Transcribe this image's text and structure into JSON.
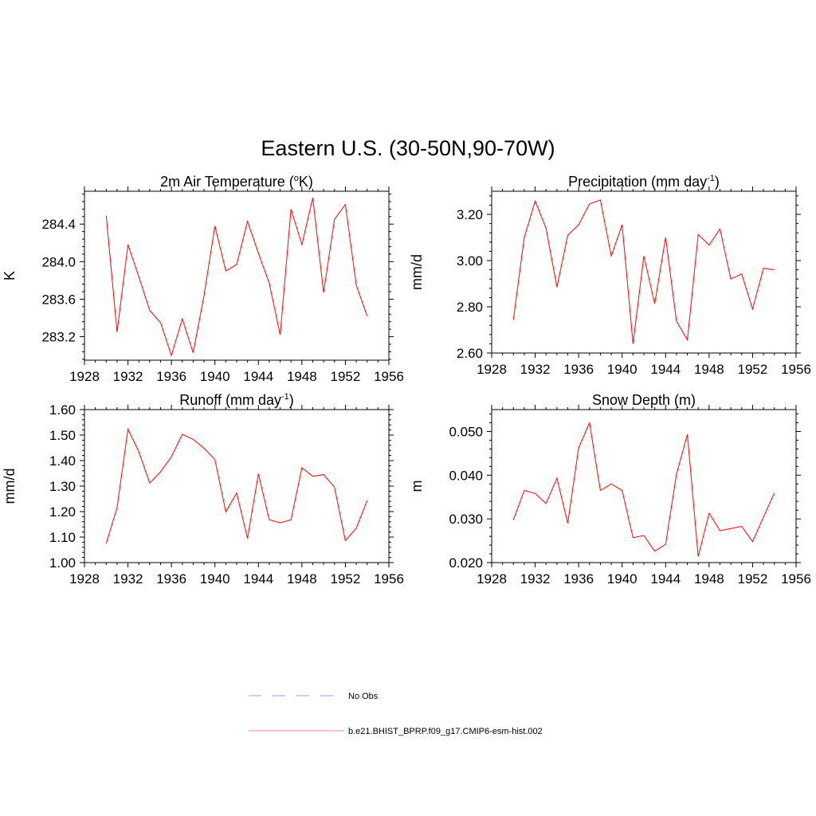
{
  "figure": {
    "title": "Eastern U.S. (30-50N,90-70W)"
  },
  "legend": {
    "items": [
      {
        "label": "No Obs",
        "color": "#9999ff",
        "style": "dashed"
      },
      {
        "label": "b.e21.BHIST_BPRP.f09_g17.CMIP6-esm-hist.002",
        "color": "#ff8080",
        "style": "solid"
      }
    ]
  },
  "chart_data": [
    {
      "type": "line",
      "title_main": "2m Air Temperature (",
      "title_sup": "o",
      "title_tail": "K)",
      "xlabel": "",
      "ylabel": "K",
      "series_color": "#ff0000",
      "xlim": [
        1928,
        1956
      ],
      "ylim": [
        282.95,
        284.75
      ],
      "xticks": [
        1928,
        1932,
        1936,
        1940,
        1944,
        1948,
        1952,
        1956
      ],
      "yticks": [
        283.2,
        283.6,
        284.0,
        284.4
      ],
      "ytick_labels": [
        "283.2",
        "283.6",
        "284.0",
        "284.4"
      ],
      "series": [
        {
          "name": "b.e21.BHIST_BPRP.f09_g17.CMIP6-esm-hist.002",
          "x": [
            1930,
            1931,
            1932,
            1933,
            1934,
            1935,
            1936,
            1937,
            1938,
            1939,
            1940,
            1941,
            1942,
            1943,
            1944,
            1945,
            1946,
            1947,
            1948,
            1949,
            1950,
            1951,
            1952,
            1953,
            1954
          ],
          "y": [
            284.49,
            283.25,
            284.18,
            283.84,
            283.48,
            283.35,
            283.0,
            283.39,
            283.03,
            283.64,
            284.38,
            283.9,
            283.97,
            284.43,
            284.09,
            283.77,
            283.22,
            284.56,
            284.18,
            284.68,
            283.67,
            284.45,
            284.61,
            283.75,
            283.42
          ]
        }
      ]
    },
    {
      "type": "line",
      "title_main": "Precipitation (mm day",
      "title_sup": "-1",
      "title_tail": ")",
      "xlabel": "",
      "ylabel": "mm/d",
      "series_color": "#ff0000",
      "xlim": [
        1928,
        1956
      ],
      "ylim": [
        2.6,
        3.3
      ],
      "xticks": [
        1928,
        1932,
        1936,
        1940,
        1944,
        1948,
        1952,
        1956
      ],
      "yticks": [
        2.6,
        2.8,
        3.0,
        3.2
      ],
      "ytick_labels": [
        "2.60",
        "2.80",
        "3.00",
        "3.20"
      ],
      "series": [
        {
          "name": "b.e21.BHIST_BPRP.f09_g17.CMIP6-esm-hist.002",
          "x": [
            1930,
            1931,
            1932,
            1933,
            1934,
            1935,
            1936,
            1937,
            1938,
            1939,
            1940,
            1941,
            1942,
            1943,
            1944,
            1945,
            1946,
            1947,
            1948,
            1949,
            1950,
            1951,
            1952,
            1953,
            1954
          ],
          "y": [
            2.745,
            3.1,
            3.258,
            3.14,
            2.885,
            3.11,
            3.155,
            3.245,
            3.262,
            3.02,
            3.155,
            2.64,
            3.02,
            2.813,
            3.1,
            2.738,
            2.657,
            3.113,
            3.067,
            3.137,
            2.92,
            2.942,
            2.79,
            2.967,
            2.96
          ]
        }
      ]
    },
    {
      "type": "line",
      "title_main": "Runoff (mm day",
      "title_sup": "-1",
      "title_tail": ")",
      "xlabel": "",
      "ylabel": "mm/d",
      "series_color": "#ff0000",
      "xlim": [
        1928,
        1956
      ],
      "ylim": [
        1.0,
        1.6
      ],
      "xticks": [
        1928,
        1932,
        1936,
        1940,
        1944,
        1948,
        1952,
        1956
      ],
      "yticks": [
        1.0,
        1.1,
        1.2,
        1.3,
        1.4,
        1.5,
        1.6
      ],
      "ytick_labels": [
        "1.00",
        "1.10",
        "1.20",
        "1.30",
        "1.40",
        "1.50",
        "1.60"
      ],
      "series": [
        {
          "name": "b.e21.BHIST_BPRP.f09_g17.CMIP6-esm-hist.002",
          "x": [
            1930,
            1931,
            1932,
            1933,
            1934,
            1935,
            1936,
            1937,
            1938,
            1939,
            1940,
            1941,
            1942,
            1943,
            1944,
            1945,
            1946,
            1947,
            1948,
            1949,
            1950,
            1951,
            1952,
            1953,
            1954
          ],
          "y": [
            1.075,
            1.215,
            1.523,
            1.435,
            1.312,
            1.356,
            1.415,
            1.503,
            1.483,
            1.448,
            1.404,
            1.199,
            1.273,
            1.095,
            1.348,
            1.168,
            1.156,
            1.168,
            1.372,
            1.338,
            1.345,
            1.295,
            1.086,
            1.135,
            1.243
          ]
        }
      ]
    },
    {
      "type": "line",
      "title_main": "Snow Depth (m)",
      "title_sup": "",
      "title_tail": "",
      "xlabel": "",
      "ylabel": "m",
      "series_color": "#ff0000",
      "xlim": [
        1928,
        1956
      ],
      "ylim": [
        0.02,
        0.055
      ],
      "xticks": [
        1928,
        1932,
        1936,
        1940,
        1944,
        1948,
        1952,
        1956
      ],
      "yticks": [
        0.02,
        0.03,
        0.04,
        0.05
      ],
      "ytick_labels": [
        "0.020",
        "0.030",
        "0.040",
        "0.050"
      ],
      "series": [
        {
          "name": "b.e21.BHIST_BPRP.f09_g17.CMIP6-esm-hist.002",
          "x": [
            1930,
            1931,
            1932,
            1933,
            1934,
            1935,
            1936,
            1937,
            1938,
            1939,
            1940,
            1941,
            1942,
            1943,
            1944,
            1945,
            1946,
            1947,
            1948,
            1949,
            1950,
            1951,
            1952,
            1953,
            1954
          ],
          "y": [
            0.0298,
            0.0365,
            0.0358,
            0.0335,
            0.0393,
            0.029,
            0.0462,
            0.052,
            0.0365,
            0.038,
            0.0365,
            0.0257,
            0.0262,
            0.0226,
            0.0242,
            0.0402,
            0.0493,
            0.0214,
            0.0313,
            0.0273,
            0.0278,
            0.0283,
            0.0248,
            0.0304,
            0.0359
          ]
        }
      ]
    }
  ]
}
